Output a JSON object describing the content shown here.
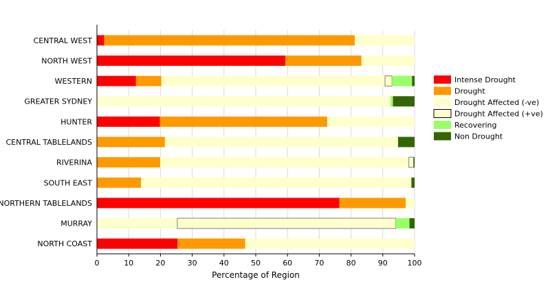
{
  "chart_data": {
    "type": "bar",
    "orientation": "horizontal",
    "stacked": true,
    "xlabel": "Percentage of Region",
    "xlim": [
      0,
      100
    ],
    "xticks": [
      0,
      10,
      20,
      30,
      40,
      50,
      60,
      70,
      80,
      90,
      100
    ],
    "grid": "vertical",
    "legend_position": "right",
    "categories": [
      "CENTRAL WEST",
      "NORTH WEST",
      "WESTERN",
      "GREATER SYDNEY",
      "HUNTER",
      "CENTRAL TABLELANDS",
      "RIVERINA",
      "SOUTH EAST",
      "NORTHERN TABLELANDS",
      "MURRAY",
      "NORTH COAST"
    ],
    "series": [
      {
        "name": "Intense Drought",
        "color": "#ff0000",
        "values": [
          2.3,
          59.3,
          12.3,
          0,
          19.8,
          0,
          0,
          0,
          76.3,
          0,
          25.4
        ]
      },
      {
        "name": "Drought",
        "color": "#ff9900",
        "values": [
          78.9,
          24.0,
          8.0,
          0,
          52.7,
          21.4,
          19.9,
          13.9,
          20.9,
          0,
          21.3
        ]
      },
      {
        "name": "Drought Affected (-ve)",
        "color": "#ffffcc",
        "values": [
          18.8,
          16.7,
          70.4,
          92.4,
          27.5,
          73.4,
          78.3,
          85.1,
          2.8,
          25.3,
          53.3
        ]
      },
      {
        "name": "Drought Affected (+ve)",
        "color": "#ffffcc",
        "outlined": true,
        "values": [
          0,
          0,
          2.2,
          0,
          0,
          0,
          1.5,
          0,
          0,
          68.8,
          0
        ]
      },
      {
        "name": "Recovering",
        "color": "#99ff66",
        "values": [
          0,
          0,
          6.3,
          0.8,
          0,
          0,
          0,
          0,
          0,
          4.3,
          0
        ]
      },
      {
        "name": "Non Drought",
        "color": "#336600",
        "values": [
          0,
          0,
          0.8,
          6.8,
          0,
          5.2,
          0.3,
          1.0,
          0,
          1.6,
          0
        ]
      }
    ]
  }
}
